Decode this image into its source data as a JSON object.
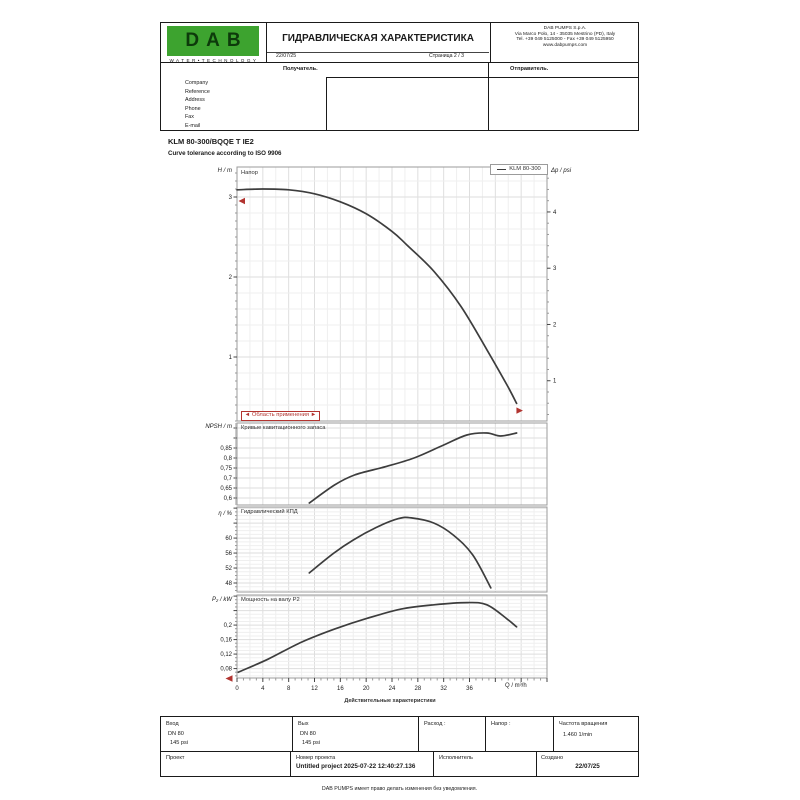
{
  "colors": {
    "logo_green": "#3da32f",
    "logo_text": "#0d3a0b",
    "red": "#b23430",
    "curve": "#3d3d3d",
    "grid": "#dedede",
    "grid_minor": "#efefef",
    "frame": "#9b9b9b",
    "text": "#1a1a1a"
  },
  "header": {
    "logo": {
      "text": "DAB",
      "tagline": "W A T E R • T E C H N O L O G Y"
    },
    "title": "ГИДРАВЛИЧЕСКАЯ ХАРАКТЕРИСТИКА",
    "date": "22/07/25",
    "page": "Страница 2 / 3",
    "company": {
      "name": "DAB PUMPS S.p.A.",
      "address": "Via Marco Polo, 14 - 35035 Mestrino (PD), Italy",
      "phone": "Tel. +39 049 5125000 - Fax +39 049 5125950",
      "web": "www.dabpumps.com"
    },
    "recipient_label": "Получатель.",
    "sender_label": "Отправитель.",
    "form_labels": [
      "Company",
      "Reference",
      "Address",
      "Phone",
      "Fax",
      "E-mail"
    ]
  },
  "product": {
    "model": "KLM 80-300/BQQE T IE2",
    "tolerance": "Curve tolerance according to ISO 9906"
  },
  "x_axis": {
    "lim": [
      0,
      48
    ],
    "ticks": [
      0,
      4,
      8,
      12,
      16,
      20,
      24,
      28,
      32,
      36
    ],
    "minor": 1,
    "grid_minor": 2,
    "grid_major": 4,
    "label": "Q / m³/h",
    "caption": "Действительные характеристики"
  },
  "chart_data": [
    {
      "type": "line",
      "name": "head-curve-chart",
      "title": "Напор",
      "ylabel": "H / m",
      "y2label": "Δp / psi",
      "xlabel": "Q / m³/h",
      "legend": [
        "KLM 80-300"
      ],
      "legend_position": "top-right",
      "ylim": [
        0.2,
        3.375
      ],
      "y_ticks": [
        1,
        2,
        3
      ],
      "y_grid": 0.2,
      "y_tick_step": 0.1,
      "y2_ticks": [
        1,
        2,
        3,
        4
      ],
      "y2_per_y": 1.4219,
      "series": [
        {
          "name": "KLM 80-300",
          "x": [
            0,
            4,
            8,
            12,
            16,
            20,
            24,
            26.3,
            30.5,
            34.7,
            38.7,
            41.8,
            43.3
          ],
          "y": [
            3.09,
            3.1,
            3.09,
            3.04,
            2.94,
            2.79,
            2.57,
            2.4,
            2.07,
            1.63,
            1.09,
            0.65,
            0.42
          ]
        }
      ],
      "annotations": {
        "application_range": "◄ Область применения ►",
        "head_axis_marker": 2.95,
        "curve_end_marker": [
          43.5,
          0.33
        ],
        "flow_axis_marker": 0
      }
    },
    {
      "type": "line",
      "name": "npsh-chart",
      "title": "Кривые кавитационного запаса",
      "ylabel": "NPSH / m",
      "ylim": [
        0.565,
        0.975
      ],
      "y_ticks": [
        0.6,
        0.65,
        0.7,
        0.75,
        0.8,
        0.85
      ],
      "y_grid": 0.05,
      "y_tick_step": 0.01,
      "series": [
        {
          "name": "NPSH",
          "x": [
            11.2,
            15.1,
            18.2,
            22.8,
            27.4,
            32,
            35.6,
            38.7,
            40.8,
            43.3
          ],
          "y": [
            0.575,
            0.665,
            0.715,
            0.755,
            0.8,
            0.865,
            0.915,
            0.925,
            0.91,
            0.925
          ]
        }
      ]
    },
    {
      "type": "line",
      "name": "efficiency-chart",
      "title": "Гидравлический КПД",
      "ylabel": "η / %",
      "ylim": [
        45.6,
        68.3
      ],
      "y_ticks": [
        48,
        52,
        56,
        60
      ],
      "y_grid": 1,
      "y_tick_step": 1,
      "series": [
        {
          "name": "η",
          "x": [
            11.2,
            15,
            18,
            21.5,
            25,
            27,
            30.5,
            33.5,
            36.5,
            39.3
          ],
          "y": [
            50.7,
            56,
            59.5,
            62.8,
            65.2,
            65.4,
            64,
            60.8,
            55.5,
            46.7
          ]
        }
      ]
    },
    {
      "type": "line",
      "name": "power-chart",
      "title": "Мощность на валу P2",
      "ylabel": "P₂ / kW",
      "ylim": [
        0.054,
        0.283
      ],
      "y_ticks": [
        0.08,
        0.12,
        0.16,
        0.2
      ],
      "y_grid": 0.01,
      "y_tick_step": 0.01,
      "series": [
        {
          "name": "P2",
          "x": [
            0.2,
            4.8,
            10,
            15.1,
            20.2,
            25.4,
            30.5,
            35.6,
            38.7,
            41.8,
            43.3
          ],
          "y": [
            0.07,
            0.106,
            0.153,
            0.189,
            0.219,
            0.244,
            0.256,
            0.262,
            0.256,
            0.217,
            0.195
          ]
        }
      ]
    }
  ],
  "specs": {
    "inlet": {
      "label": "Вход",
      "lines": [
        "DN 80",
        "145 psi"
      ]
    },
    "outlet": {
      "label": "Вых",
      "lines": [
        "DN 80",
        "145 psi"
      ]
    },
    "flow_label": "Расход :",
    "head_label": "Напор :",
    "speed": {
      "label": "Частота вращения",
      "value": "1.460 1/min"
    }
  },
  "project": {
    "project_label": "Проект",
    "number_label": "Номер проекта",
    "number_value": "Untitled project 2025-07-22 12:40:27.136",
    "executor_label": "Исполнитель",
    "created_label": "Создано",
    "created_value": "22/07/25"
  },
  "footer_note": "DAB PUMPS имеет право делать изменения без уведомления."
}
